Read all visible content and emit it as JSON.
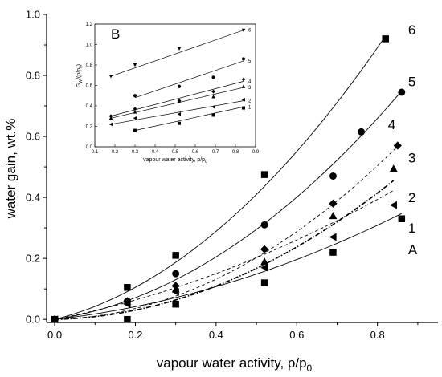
{
  "chart_data": [
    {
      "type": "scatter",
      "title": "",
      "xlabel": "vapour water activity, p/p",
      "xlabel_sub": "0",
      "ylabel": "water gain, wt.%",
      "xlim": [
        -0.02,
        0.95
      ],
      "ylim": [
        -0.01,
        1.0
      ],
      "xticks": [
        "0.0",
        "0.2",
        "0.4",
        "0.6",
        "0.8"
      ],
      "yticks": [
        "0.0",
        "0.2",
        "0.4",
        "0.6",
        "0.8",
        "1.0"
      ],
      "grid": false,
      "series": [
        {
          "name": "A",
          "marker": "square",
          "line": "solid",
          "x": [
            0.0,
            0.18,
            0.3,
            0.52,
            0.69,
            0.86
          ],
          "y": [
            0.0,
            0.0,
            0.05,
            0.12,
            0.22,
            0.33
          ],
          "fit": [
            0.0,
            0.15,
            0.295
          ]
        },
        {
          "name": "1",
          "marker": "triangle-left",
          "line": "dashed",
          "x": [
            0.0,
            0.18,
            0.3,
            0.52,
            0.69,
            0.84
          ],
          "y": [
            0.0,
            0.05,
            0.09,
            0.17,
            0.27,
            0.375
          ],
          "fit": [
            0.0,
            0.26,
            0.29
          ]
        },
        {
          "name": "2",
          "marker": "triangle-up",
          "line": "dashdot",
          "x": [
            0.0,
            0.18,
            0.3,
            0.52,
            0.69,
            0.84
          ],
          "y": [
            0.0,
            0.06,
            0.1,
            0.19,
            0.34,
            0.495
          ],
          "fit": [
            0.0,
            0.03,
            0.61
          ]
        },
        {
          "name": "3",
          "marker": "diamond",
          "line": "dashed",
          "x": [
            0.0,
            0.18,
            0.3,
            0.52,
            0.69,
            0.85
          ],
          "y": [
            0.0,
            0.06,
            0.11,
            0.23,
            0.38,
            0.57
          ],
          "fit": [
            0.0,
            0.03,
            0.75
          ]
        },
        {
          "name": "4",
          "marker": "circle",
          "line": "none",
          "x": [
            0.0,
            0.18,
            0.3,
            0.52,
            0.69,
            0.76
          ],
          "y": [
            0.0,
            0.06,
            0.15,
            0.31,
            0.47,
            0.615
          ],
          "fit": []
        },
        {
          "name": "5",
          "marker": "circle",
          "line": "solid",
          "x": [
            0.0,
            0.18,
            0.3,
            0.52,
            0.69,
            0.76,
            0.86
          ],
          "y": [
            0.0,
            0.06,
            0.15,
            0.31,
            0.47,
            0.615,
            0.745
          ],
          "fit": [
            0.0,
            0.2,
            0.78
          ]
        },
        {
          "name": "6",
          "marker": "square",
          "line": "solid",
          "x": [
            0.0,
            0.18,
            0.3,
            0.52,
            0.82
          ],
          "y": [
            0.0,
            0.105,
            0.21,
            0.475,
            0.92
          ],
          "fit": [
            0.0,
            0.33,
            0.98
          ]
        }
      ]
    },
    {
      "type": "scatter",
      "title": "B",
      "xlabel": "vapour water activity, p/p",
      "xlabel_sub": "0",
      "ylabel": "G",
      "ylabel_sub": "W",
      "ylabel_suffix": "/(p/p",
      "ylabel_sub2": "0",
      "ylabel_end": ")",
      "xlim": [
        0.1,
        0.9
      ],
      "ylim": [
        0.0,
        1.2
      ],
      "xticks": [
        "0.1",
        "0.2",
        "0.3",
        "0.4",
        "0.5",
        "0.6",
        "0.7",
        "0.8",
        "0.9"
      ],
      "yticks": [
        "0.0",
        "0.2",
        "0.4",
        "0.6",
        "0.8",
        "1.0",
        "1.2"
      ],
      "grid": false,
      "series": [
        {
          "name": "1",
          "marker": "square-small",
          "x": [
            0.3,
            0.52,
            0.69,
            0.84
          ],
          "y": [
            0.16,
            0.23,
            0.31,
            0.38
          ],
          "line": [
            0.3,
            0.16,
            0.84,
            0.39
          ]
        },
        {
          "name": "2",
          "marker": "triangle-left-small",
          "x": [
            0.18,
            0.3,
            0.52,
            0.69,
            0.84
          ],
          "y": [
            0.22,
            0.28,
            0.32,
            0.39,
            0.46
          ],
          "line": [
            0.18,
            0.22,
            0.84,
            0.45
          ]
        },
        {
          "name": "3",
          "marker": "triangle-up-small",
          "x": [
            0.18,
            0.3,
            0.52,
            0.69,
            0.84
          ],
          "y": [
            0.28,
            0.34,
            0.45,
            0.49,
            0.59
          ],
          "line": [
            0.18,
            0.28,
            0.84,
            0.58
          ]
        },
        {
          "name": "4",
          "marker": "diamond-small",
          "x": [
            0.18,
            0.3,
            0.52,
            0.69,
            0.84
          ],
          "y": [
            0.3,
            0.37,
            0.45,
            0.54,
            0.66
          ],
          "line": [
            0.18,
            0.3,
            0.84,
            0.64
          ]
        },
        {
          "name": "5",
          "marker": "circle-small",
          "x": [
            0.3,
            0.52,
            0.69,
            0.84
          ],
          "y": [
            0.5,
            0.59,
            0.68,
            0.86
          ],
          "line": [
            0.3,
            0.48,
            0.84,
            0.84
          ]
        },
        {
          "name": "6",
          "marker": "triangle-down-small",
          "x": [
            0.18,
            0.3,
            0.52,
            0.84
          ],
          "y": [
            0.69,
            0.8,
            0.96,
            1.14
          ],
          "line": [
            0.18,
            0.69,
            0.84,
            1.14
          ]
        }
      ]
    }
  ]
}
